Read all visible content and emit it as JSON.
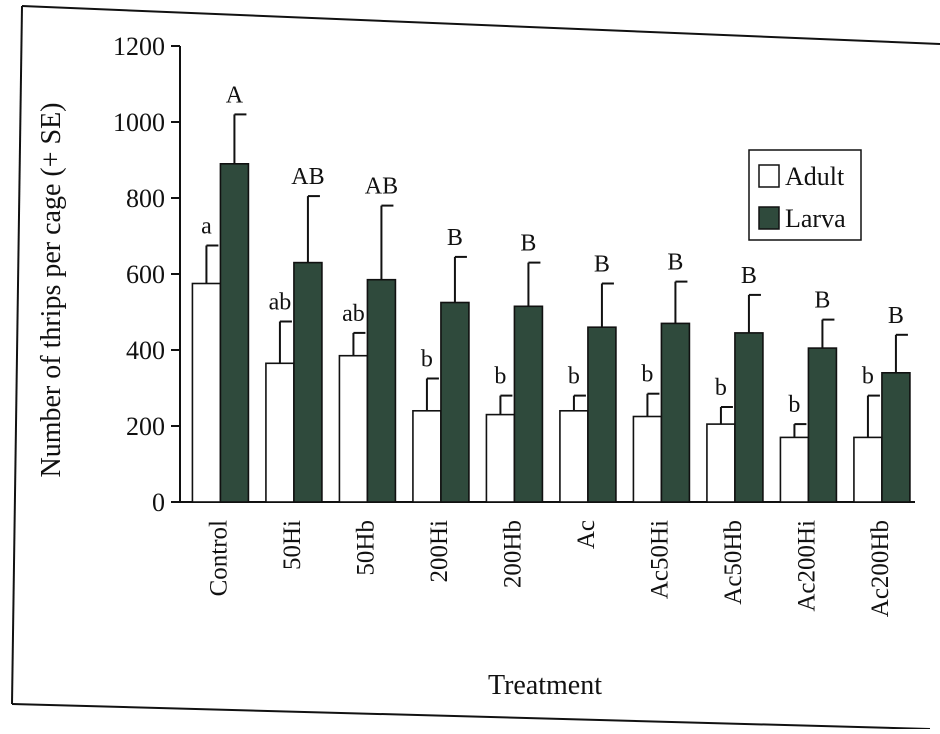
{
  "chart_data": {
    "type": "bar",
    "ylabel": "Number of thrips per cage (+ SE)",
    "xlabel": "Treatment",
    "ylim": [
      0,
      1200
    ],
    "yticks": [
      0,
      200,
      400,
      600,
      800,
      1000,
      1200
    ],
    "categories": [
      "Control",
      "50Hi",
      "50Hb",
      "200Hi",
      "200Hb",
      "Ac",
      "Ac50Hi",
      "Ac50Hb",
      "Ac200Hi",
      "Ac200Hb"
    ],
    "series": [
      {
        "name": "Adult",
        "color": "#ffffff",
        "values": [
          575,
          365,
          385,
          240,
          230,
          240,
          225,
          205,
          170,
          170
        ],
        "se": [
          100,
          110,
          60,
          85,
          50,
          40,
          60,
          45,
          35,
          110
        ],
        "letters": [
          "a",
          "ab",
          "ab",
          "b",
          "b",
          "b",
          "b",
          "b",
          "b",
          "b"
        ]
      },
      {
        "name": "Larva",
        "color": "#2f4a3c",
        "values": [
          890,
          630,
          585,
          525,
          515,
          460,
          470,
          445,
          405,
          340
        ],
        "se": [
          130,
          175,
          195,
          120,
          115,
          115,
          110,
          100,
          75,
          100
        ],
        "letters": [
          "A",
          "AB",
          "AB",
          "B",
          "B",
          "B",
          "B",
          "B",
          "B",
          "B"
        ]
      }
    ],
    "legend": {
      "position": "top-right"
    },
    "grid": false
  },
  "colors": {
    "frame": "#111111",
    "larva_fill": "#2f4a3c"
  }
}
